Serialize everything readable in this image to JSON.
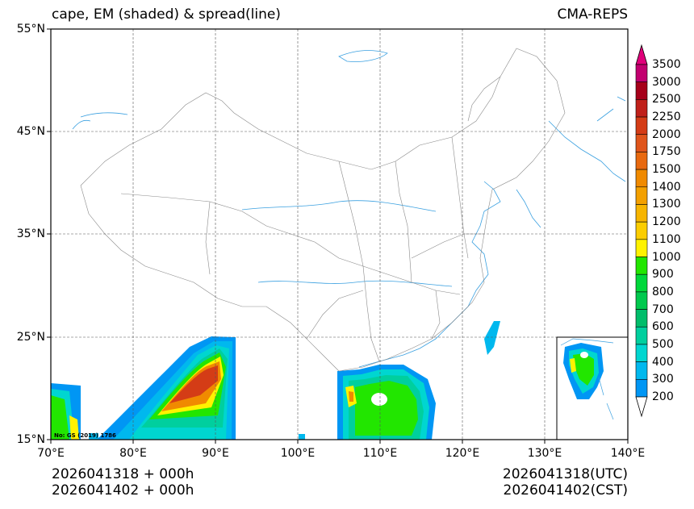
{
  "title": {
    "left": "cape, EM (shaded) & spread(line)",
    "right": "CMA-REPS"
  },
  "axes": {
    "y_ticks": [
      "55°N",
      "45°N",
      "35°N",
      "25°N",
      "15°N"
    ],
    "x_ticks": [
      "70°E",
      "80°E",
      "90°E",
      "100°E",
      "110°E",
      "120°E",
      "130°E",
      "140°E"
    ]
  },
  "footer": {
    "left_line1": "2026041318  +  000h",
    "left_line2": "2026041402  +  000h",
    "right_line1": "2026041318(UTC)",
    "right_line2": "2026041402(CST)"
  },
  "map_stamp": "No: GS (2019) 1786",
  "colorbar": {
    "levels": [
      "3500",
      "3000",
      "2500",
      "2250",
      "2000",
      "1750",
      "1500",
      "1400",
      "1300",
      "1200",
      "1100",
      "1000",
      "900",
      "800",
      "700",
      "600",
      "500",
      "400",
      "300",
      "200"
    ],
    "colors": [
      "#c2006f",
      "#a6001a",
      "#c0201a",
      "#d43c16",
      "#e0551b",
      "#e8690f",
      "#f08a00",
      "#f3a000",
      "#f7b500",
      "#fbcd00",
      "#fff200",
      "#22e600",
      "#00d83a",
      "#00c94d",
      "#00bd6a",
      "#00cf9e",
      "#00d6d0",
      "#00b8ee",
      "#0096f4"
    ],
    "top_arrow_color": "#e0007a",
    "bottom_arrow_color": "#ffffff"
  }
}
